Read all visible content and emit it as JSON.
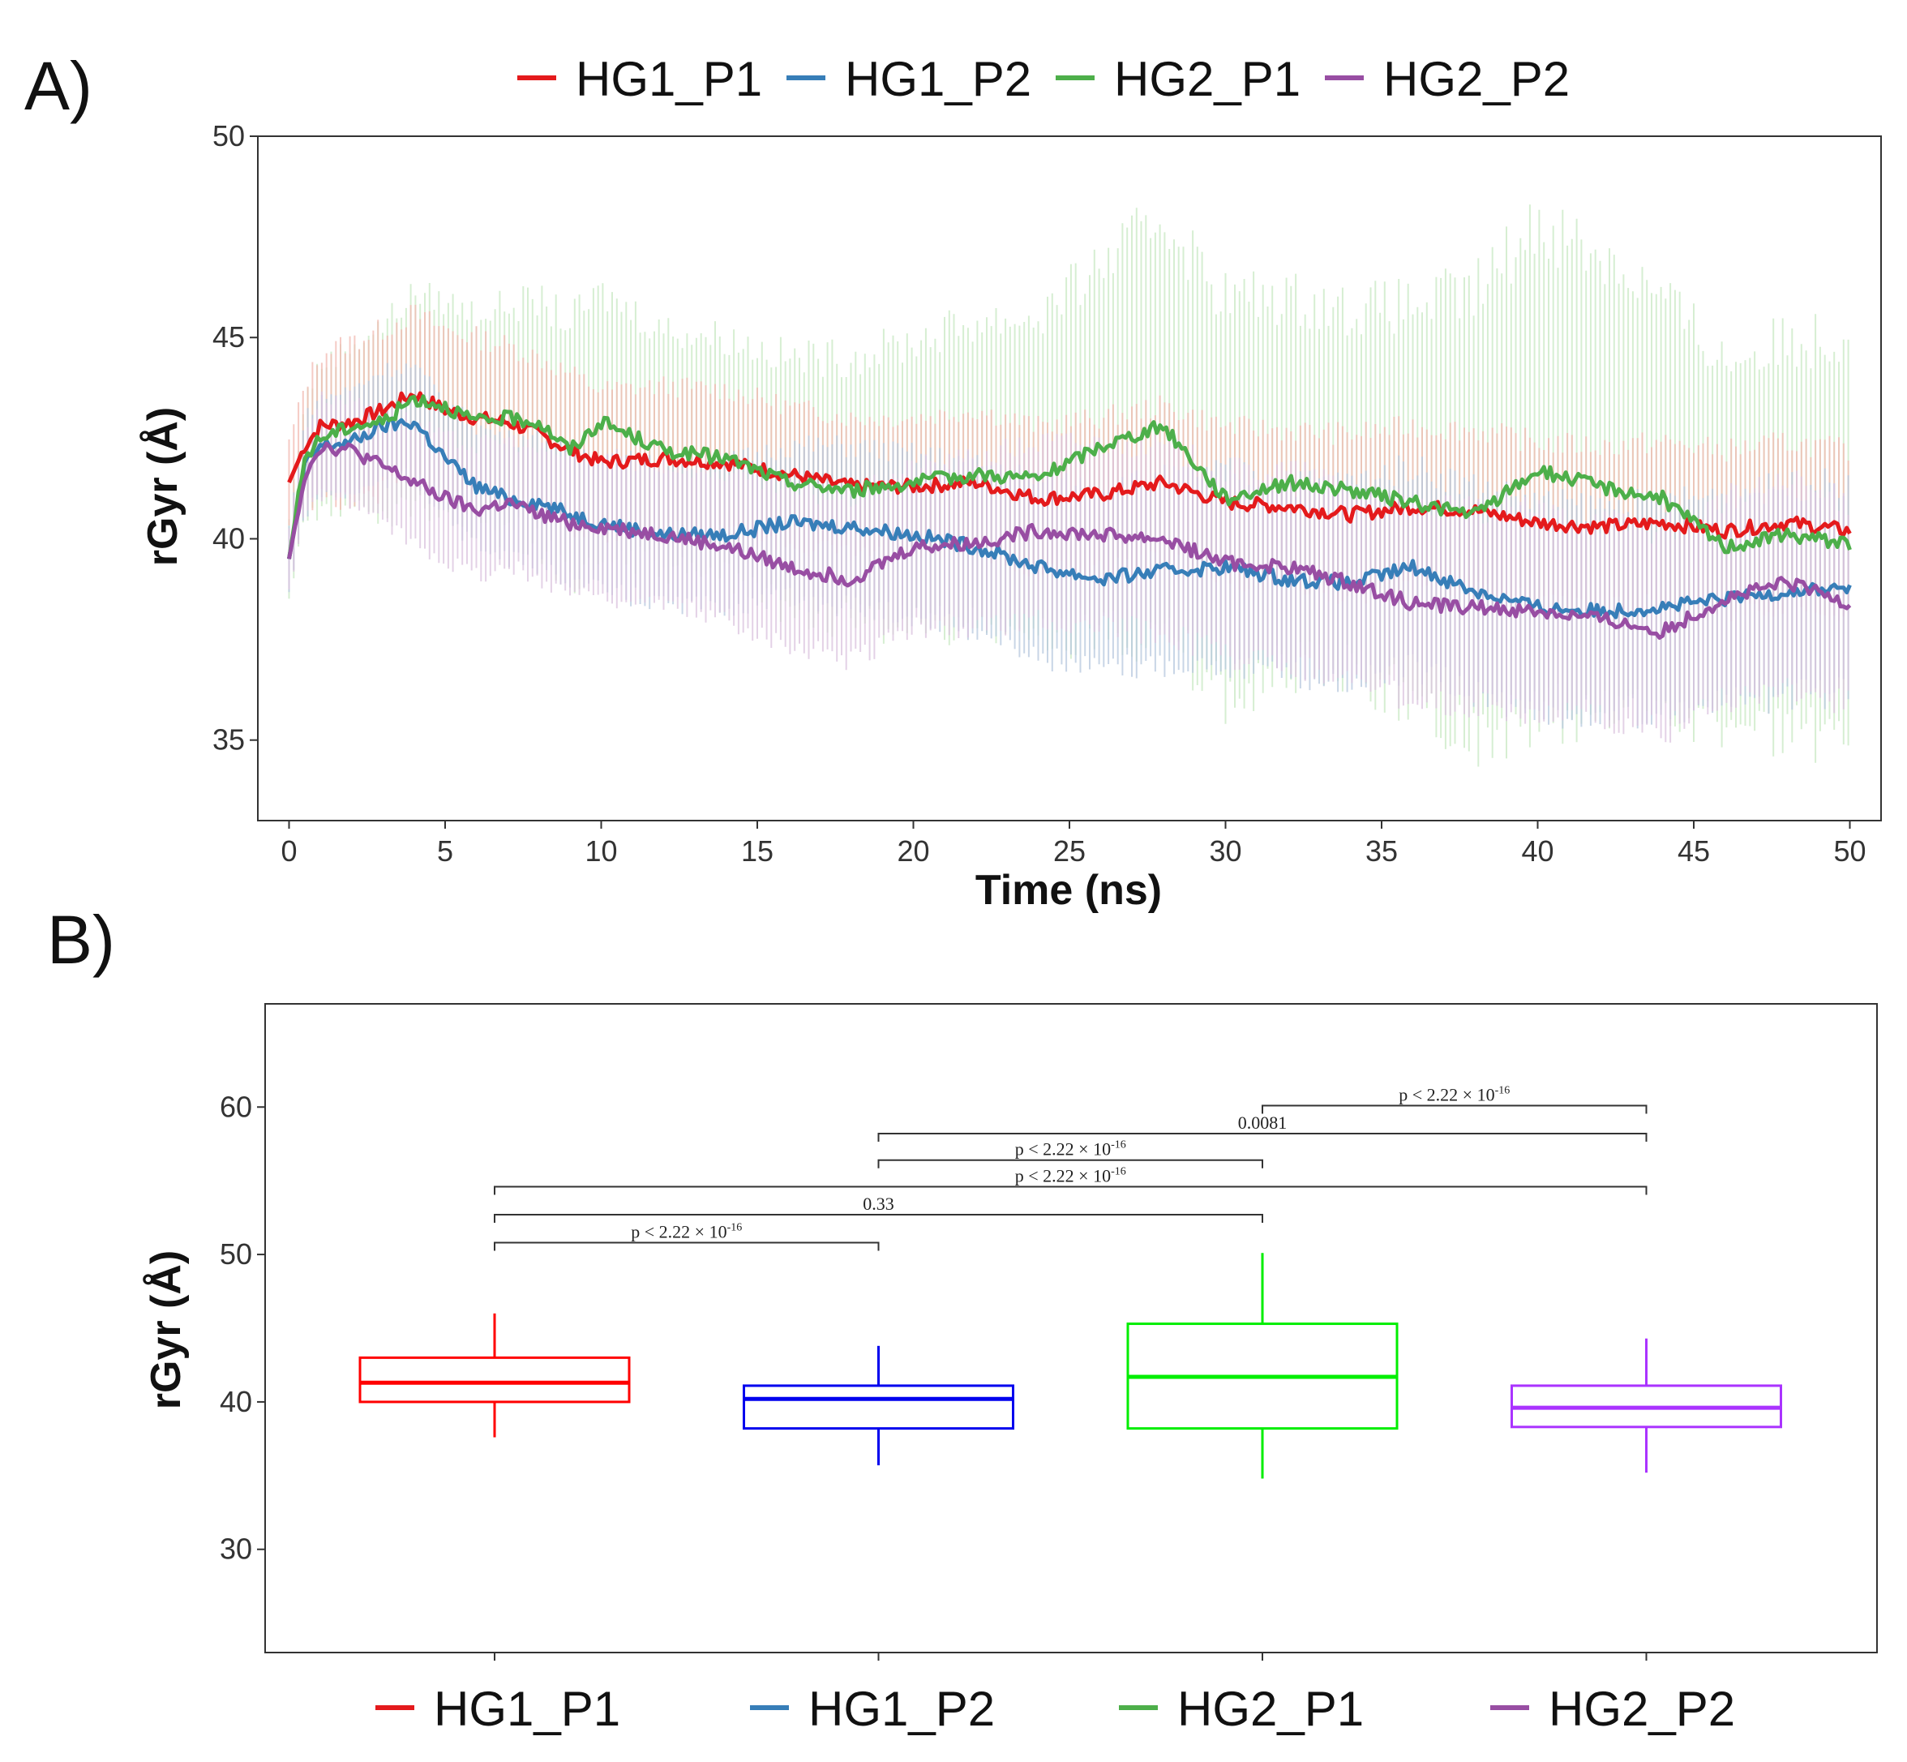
{
  "chart_data": [
    {
      "type": "line",
      "panel_label": "A)",
      "xlabel": "Time (ns)",
      "ylabel": "rGyr (Å)",
      "xlim": [
        -1,
        51
      ],
      "ylim": [
        33,
        50
      ],
      "x_ticks": [
        0,
        5,
        10,
        15,
        20,
        25,
        30,
        35,
        40,
        45,
        50
      ],
      "y_ticks": [
        35,
        40,
        45,
        50
      ],
      "legend_position": "top",
      "error_bars": true,
      "series": [
        {
          "name": "HG1_P1",
          "color": "#e41a1c",
          "error_color": "#f2b8b0",
          "x": [
            0,
            0.5,
            1,
            2,
            3,
            4,
            5,
            6,
            7,
            8,
            9,
            10,
            12,
            14,
            16,
            18,
            20,
            22,
            24,
            26,
            28,
            30,
            32,
            34,
            36,
            38,
            40,
            42,
            44,
            46,
            48,
            50
          ],
          "y": [
            41.4,
            42.3,
            42.8,
            42.9,
            43.2,
            43.6,
            43.2,
            43.0,
            42.9,
            42.6,
            42.2,
            41.9,
            42.0,
            41.9,
            41.6,
            41.3,
            41.3,
            41.4,
            41.0,
            41.1,
            41.4,
            40.9,
            40.8,
            40.6,
            40.8,
            40.7,
            40.4,
            40.3,
            40.4,
            40.2,
            40.4,
            40.2
          ],
          "err": [
            1.0,
            1.5,
            1.8,
            2.0,
            2.0,
            2.0,
            2.0,
            2.0,
            1.9,
            1.9,
            1.9,
            1.8,
            1.8,
            1.8,
            1.7,
            1.7,
            1.7,
            1.8,
            1.8,
            1.9,
            1.9,
            1.9,
            1.9,
            2.0,
            2.0,
            2.0,
            2.0,
            2.0,
            2.0,
            2.0,
            2.0,
            2.0
          ]
        },
        {
          "name": "HG1_P2",
          "color": "#377eb8",
          "error_color": "#b5c7dd",
          "x": [
            0,
            0.5,
            1,
            2,
            3,
            4,
            5,
            6,
            7,
            8,
            9,
            10,
            12,
            14,
            16,
            18,
            20,
            22,
            24,
            26,
            28,
            30,
            32,
            34,
            36,
            38,
            40,
            42,
            44,
            46,
            48,
            50
          ],
          "y": [
            39.5,
            41.8,
            42.3,
            42.4,
            42.8,
            42.9,
            42.0,
            41.3,
            41.0,
            40.9,
            40.6,
            40.4,
            40.1,
            40.1,
            40.4,
            40.3,
            40.1,
            39.8,
            39.3,
            39.0,
            39.2,
            39.3,
            39.0,
            38.9,
            39.3,
            38.7,
            38.3,
            38.2,
            38.3,
            38.5,
            38.7,
            38.8
          ],
          "err": [
            0.8,
            1.2,
            1.2,
            1.3,
            1.4,
            1.4,
            1.4,
            1.5,
            1.5,
            1.6,
            1.6,
            1.7,
            1.7,
            1.8,
            1.9,
            2.0,
            2.0,
            2.1,
            2.2,
            2.3,
            2.3,
            2.4,
            2.4,
            2.5,
            2.5,
            2.6,
            2.6,
            2.6,
            2.6,
            2.6,
            2.6,
            2.6
          ]
        },
        {
          "name": "HG2_P1",
          "color": "#4daf4a",
          "error_color": "#c8e8c3",
          "x": [
            0,
            0.5,
            1,
            2,
            3,
            4,
            5,
            6,
            7,
            8,
            9,
            10,
            12,
            14,
            16,
            18,
            20,
            22,
            24,
            26,
            28,
            30,
            32,
            34,
            36,
            38,
            40,
            42,
            44,
            46,
            48,
            50
          ],
          "y": [
            39.5,
            42.0,
            42.5,
            42.8,
            42.9,
            43.5,
            43.3,
            42.9,
            43.0,
            42.9,
            42.2,
            42.9,
            42.2,
            42.0,
            41.4,
            41.2,
            41.4,
            41.6,
            41.5,
            42.3,
            42.8,
            41.0,
            41.4,
            41.2,
            40.9,
            40.6,
            41.7,
            41.3,
            41.0,
            39.8,
            40.1,
            39.9
          ],
          "err": [
            1.0,
            1.5,
            1.8,
            2.0,
            2.4,
            2.6,
            2.6,
            2.7,
            2.8,
            3.0,
            3.2,
            3.2,
            3.0,
            3.0,
            3.1,
            3.3,
            3.5,
            3.8,
            4.0,
            4.5,
            5.2,
            5.0,
            4.6,
            4.5,
            4.9,
            5.5,
            6.2,
            5.8,
            5.0,
            4.6,
            4.8,
            5.2
          ]
        },
        {
          "name": "HG2_P2",
          "color": "#984ea3",
          "error_color": "#d9c2de",
          "x": [
            0,
            0.5,
            1,
            2,
            3,
            4,
            5,
            6,
            7,
            8,
            9,
            10,
            12,
            14,
            16,
            18,
            20,
            22,
            24,
            26,
            28,
            30,
            32,
            34,
            36,
            38,
            40,
            42,
            44,
            46,
            48,
            50
          ],
          "y": [
            39.5,
            41.6,
            42.3,
            42.2,
            41.8,
            41.4,
            41.0,
            40.7,
            40.9,
            40.6,
            40.4,
            40.3,
            40.1,
            39.8,
            39.3,
            39.0,
            39.8,
            39.9,
            40.2,
            40.1,
            40.0,
            39.4,
            39.3,
            38.9,
            38.4,
            38.3,
            38.2,
            38.0,
            37.7,
            38.5,
            38.9,
            38.4
          ],
          "err": [
            0.8,
            1.0,
            1.2,
            1.3,
            1.4,
            1.5,
            1.5,
            1.6,
            1.6,
            1.6,
            1.7,
            1.7,
            1.8,
            1.8,
            1.9,
            2.0,
            2.0,
            2.1,
            2.2,
            2.3,
            2.3,
            2.3,
            2.4,
            2.4,
            2.4,
            2.4,
            2.5,
            2.5,
            2.5,
            2.5,
            2.5,
            2.5
          ]
        }
      ]
    },
    {
      "type": "box",
      "panel_label": "B)",
      "xlabel": "",
      "ylabel": "rGyr (Å)",
      "ylim": [
        23,
        67
      ],
      "y_ticks": [
        30,
        40,
        50,
        60
      ],
      "legend_position": "bottom",
      "categories": [
        "HG1_P1",
        "HG1_P2",
        "HG2_P1",
        "HG2_P2"
      ],
      "boxes": [
        {
          "name": "HG1_P1",
          "color": "#ff0000",
          "legend_color": "#e41a1c",
          "whisker_low": 37.6,
          "q1": 40.0,
          "median": 41.3,
          "q3": 43.0,
          "whisker_high": 46.0
        },
        {
          "name": "HG1_P2",
          "color": "#0000ee",
          "legend_color": "#377eb8",
          "whisker_low": 35.7,
          "q1": 38.2,
          "median": 40.2,
          "q3": 41.1,
          "whisker_high": 43.8
        },
        {
          "name": "HG2_P1",
          "color": "#00ee00",
          "legend_color": "#4daf4a",
          "whisker_low": 34.8,
          "q1": 38.2,
          "median": 41.7,
          "q3": 45.3,
          "whisker_high": 50.1
        },
        {
          "name": "HG2_P2",
          "color": "#aa33ff",
          "legend_color": "#984ea3",
          "whisker_low": 35.2,
          "q1": 38.3,
          "median": 39.6,
          "q3": 41.1,
          "whisker_high": 44.3
        }
      ],
      "comparisons": [
        {
          "from": 0,
          "to": 1,
          "y": 50.8,
          "label": "p < 2.22 × 10",
          "sup": "-16"
        },
        {
          "from": 0,
          "to": 2,
          "y": 52.7,
          "label": "0.33",
          "sup": ""
        },
        {
          "from": 0,
          "to": 3,
          "y": 54.6,
          "label": "p < 2.22 × 10",
          "sup": "-16"
        },
        {
          "from": 1,
          "to": 2,
          "y": 56.4,
          "label": "p < 2.22 × 10",
          "sup": "-16"
        },
        {
          "from": 1,
          "to": 3,
          "y": 58.2,
          "label": "0.0081",
          "sup": ""
        },
        {
          "from": 2,
          "to": 3,
          "y": 60.1,
          "label": "p < 2.22 × 10",
          "sup": "-16"
        }
      ]
    }
  ]
}
